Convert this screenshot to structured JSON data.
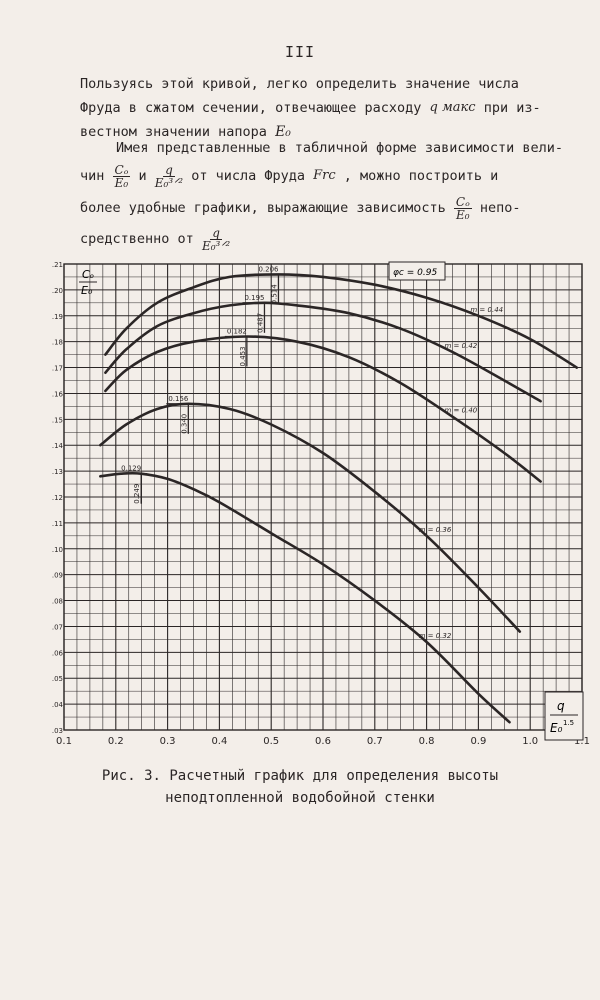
{
  "page_number": "III",
  "paragraph1": {
    "line1": "Пользуясь этой кривой, легко определить значение числа",
    "line2_a": "Фруда в сжатом сечении, отвечающее расходу",
    "q_max": "q макс",
    "line2_b": "при из-",
    "line3_a": "вестном значении напора",
    "e0": "E₀"
  },
  "paragraph2": {
    "line1": "Имея представленные в табличной форме зависимости вели-",
    "line2_a": "чин",
    "frac1_num": "Cₒ",
    "frac1_den": "E₀",
    "line2_and": "и",
    "frac2_num": "q",
    "frac2_den": "E₀³ᐟ²",
    "line2_b": "от числа Фруда",
    "fr": "Frc",
    "line2_c": ", можно построить и",
    "line3_a": "более удобные графики, выражающие зависимость",
    "frac3_num": "Cₒ",
    "frac3_den": "E₀",
    "line3_b": "непо-",
    "line4_a": "средственно от",
    "frac4_num": "q",
    "frac4_den": "E₀³ᐟ²"
  },
  "caption": {
    "line1": "Рис. 3. Расчетный график для определения высоты",
    "line2": "неподтопленной водобойной стенки"
  },
  "chart_data": {
    "type": "line",
    "ylabel_num": "Cₒ",
    "ylabel_den": "E₀",
    "xlabel_num": "q",
    "xlabel_den": "E₀",
    "xlabel_exp": "1.5",
    "phi_label": "φc = 0.95",
    "xlim": [
      0.1,
      1.1
    ],
    "ylim": [
      0.03,
      0.21
    ],
    "x_ticks": [
      0.1,
      0.2,
      0.3,
      0.4,
      0.5,
      0.6,
      0.7,
      0.8,
      0.9,
      1.0,
      1.1
    ],
    "x_tick_labels": [
      "0.1",
      "0.2",
      "0.3",
      "0.4",
      "0.5",
      "0.6",
      "0.7",
      "0.8",
      "0.9",
      "1.0",
      "1.1"
    ],
    "y_ticks": [
      0.03,
      0.04,
      0.05,
      0.06,
      0.07,
      0.08,
      0.09,
      0.1,
      0.11,
      0.12,
      0.13,
      0.14,
      0.15,
      0.16,
      0.17,
      0.18,
      0.19,
      0.2,
      0.21
    ],
    "y_tick_labels": [
      "0.03",
      "0.04",
      "0.05",
      "0.06",
      "0.07",
      "0.08",
      "0.09",
      "0.10",
      "0.11",
      "0.12",
      "0.13",
      "0.14",
      "0.15",
      "0.16",
      "0.17",
      "0.18",
      "0.19",
      "0.20",
      "0.21"
    ],
    "grid": true,
    "series": [
      {
        "name": "m = 0.44",
        "peak": {
          "x": 0.514,
          "y": 0.206,
          "label_y": "0.206",
          "label_x": "0.514"
        },
        "x": [
          0.18,
          0.22,
          0.28,
          0.35,
          0.42,
          0.514,
          0.6,
          0.7,
          0.8,
          0.9,
          1.0,
          1.09
        ],
        "y": [
          0.175,
          0.185,
          0.195,
          0.201,
          0.205,
          0.206,
          0.205,
          0.202,
          0.197,
          0.19,
          0.181,
          0.17
        ]
      },
      {
        "name": "m = 0.42",
        "peak": {
          "x": 0.487,
          "y": 0.195,
          "label_y": "0.195",
          "label_x": "0.487"
        },
        "x": [
          0.18,
          0.22,
          0.28,
          0.35,
          0.42,
          0.487,
          0.55,
          0.65,
          0.75,
          0.85,
          0.95,
          1.02
        ],
        "y": [
          0.168,
          0.177,
          0.186,
          0.191,
          0.194,
          0.195,
          0.194,
          0.191,
          0.185,
          0.176,
          0.165,
          0.157
        ]
      },
      {
        "name": "m = 0.40",
        "peak": {
          "x": 0.453,
          "y": 0.182,
          "label_y": "0.182",
          "label_x": "0.453"
        },
        "x": [
          0.18,
          0.22,
          0.28,
          0.35,
          0.453,
          0.55,
          0.65,
          0.75,
          0.85,
          0.95,
          1.02
        ],
        "y": [
          0.161,
          0.169,
          0.176,
          0.18,
          0.182,
          0.18,
          0.174,
          0.164,
          0.151,
          0.137,
          0.126
        ]
      },
      {
        "name": "m = 0.36",
        "peak": {
          "x": 0.34,
          "y": 0.156,
          "label_y": "0.156",
          "label_x": "0.340"
        },
        "x": [
          0.17,
          0.22,
          0.28,
          0.34,
          0.42,
          0.5,
          0.6,
          0.7,
          0.8,
          0.9,
          0.98
        ],
        "y": [
          0.14,
          0.148,
          0.154,
          0.156,
          0.154,
          0.148,
          0.137,
          0.122,
          0.105,
          0.085,
          0.068
        ]
      },
      {
        "name": "m = 0.32",
        "peak": {
          "x": 0.249,
          "y": 0.129,
          "label_y": "0.129",
          "label_x": "0.249"
        },
        "x": [
          0.17,
          0.21,
          0.249,
          0.3,
          0.35,
          0.4,
          0.5,
          0.6,
          0.7,
          0.8,
          0.9,
          0.96
        ],
        "y": [
          0.128,
          0.129,
          0.129,
          0.127,
          0.123,
          0.118,
          0.106,
          0.094,
          0.08,
          0.064,
          0.044,
          0.033
        ]
      }
    ]
  }
}
